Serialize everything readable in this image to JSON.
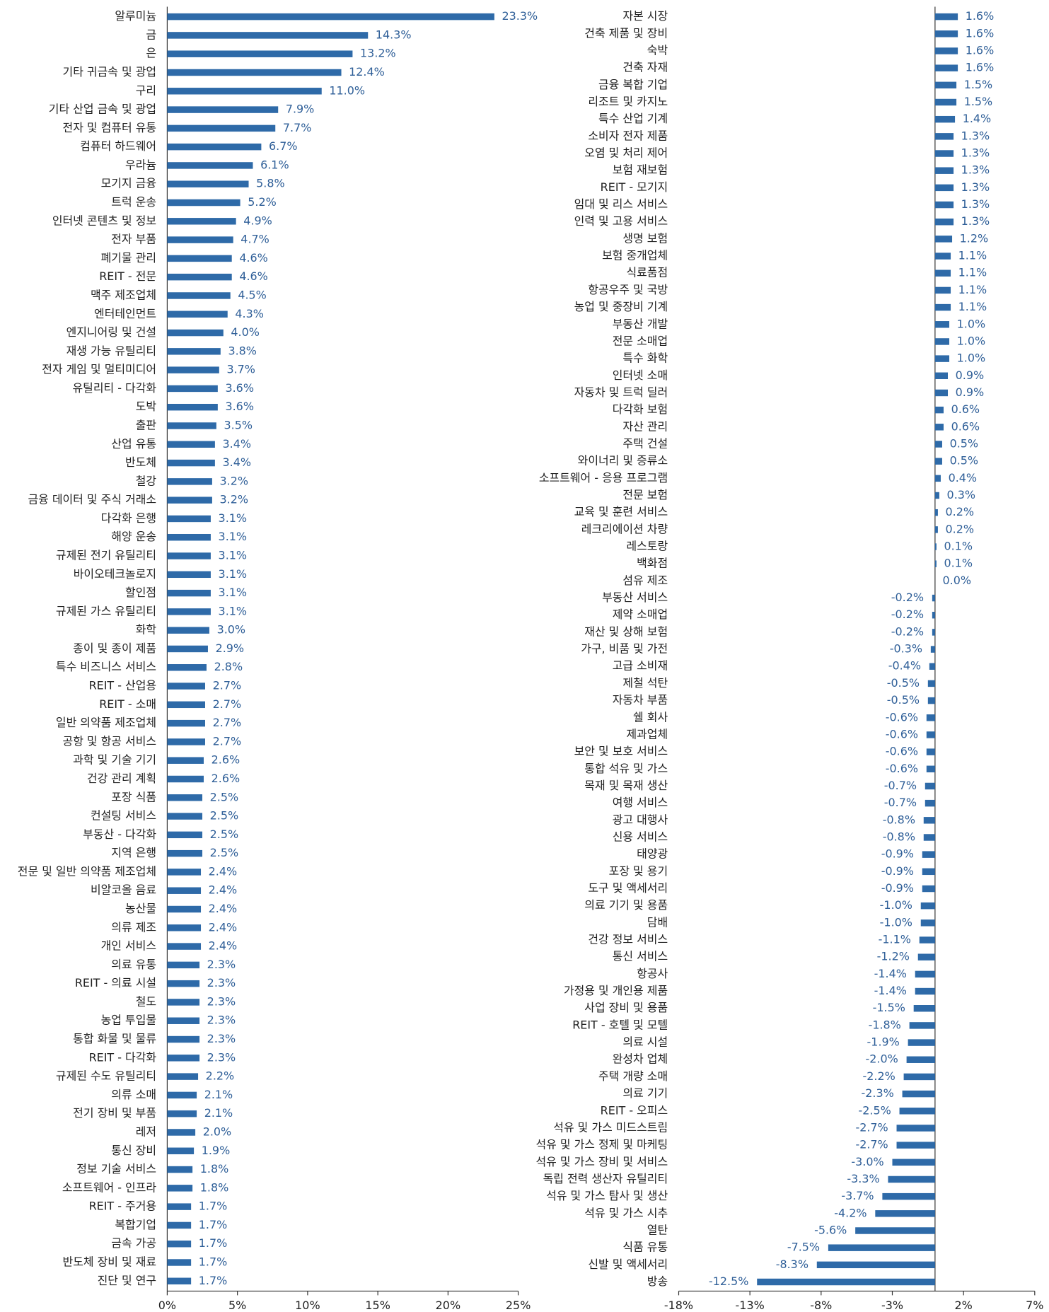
{
  "chart_data": [
    {
      "type": "bar",
      "orientation": "horizontal",
      "color": "#2e6aa8",
      "categories": [
        "알루미늄",
        "금",
        "은",
        "기타 귀금속 및 광업",
        "구리",
        "기타 산업 금속 및 광업",
        "전자 및 컴퓨터 유통",
        "컴퓨터 하드웨어",
        "우라늄",
        "모기지 금융",
        "트럭 운송",
        "인터넷 콘텐츠 및 정보",
        "전자 부품",
        "폐기물 관리",
        "REIT - 전문",
        "맥주 제조업체",
        "엔터테인먼트",
        "엔지니어링 및 건설",
        "재생 가능 유틸리티",
        "전자 게임 및 멀티미디어",
        "유틸리티 - 다각화",
        "도박",
        "출판",
        "산업 유통",
        "반도체",
        "철강",
        "금융 데이터 및 주식 거래소",
        "다각화 은행",
        "해양 운송",
        "규제된 전기 유틸리티",
        "바이오테크놀로지",
        "할인점",
        "규제된 가스 유틸리티",
        "화학",
        "종이 및 종이 제품",
        "특수 비즈니스 서비스",
        "REIT - 산업용",
        "REIT - 소매",
        "일반 의약품 제조업체",
        "공항 및 항공 서비스",
        "과학 및 기술 기기",
        "건강 관리 계획",
        "포장 식품",
        "컨설팅 서비스",
        "부동산 - 다각화",
        "지역 은행",
        "전문 및 일반 의약품 제조업체",
        "비알코올 음료",
        "농산물",
        "의류 제조",
        "개인 서비스",
        "의료 유통",
        "REIT - 의료 시설",
        "철도",
        "농업 투입물",
        "통합 화물 및 물류",
        "REIT - 다각화",
        "규제된 수도 유틸리티",
        "의류 소매",
        "전기 장비 및 부품",
        "레저",
        "통신 장비",
        "정보 기술 서비스",
        "소프트웨어 - 인프라",
        "REIT - 주거용",
        "복합기업",
        "금속 가공",
        "반도체 장비 및 재료",
        "진단 및 연구"
      ],
      "values": [
        23.3,
        14.3,
        13.2,
        12.4,
        11.0,
        7.9,
        7.7,
        6.7,
        6.1,
        5.8,
        5.2,
        4.9,
        4.7,
        4.6,
        4.6,
        4.5,
        4.3,
        4.0,
        3.8,
        3.7,
        3.6,
        3.6,
        3.5,
        3.4,
        3.4,
        3.2,
        3.2,
        3.1,
        3.1,
        3.1,
        3.1,
        3.1,
        3.1,
        3.0,
        2.9,
        2.8,
        2.7,
        2.7,
        2.7,
        2.7,
        2.6,
        2.6,
        2.5,
        2.5,
        2.5,
        2.5,
        2.4,
        2.4,
        2.4,
        2.4,
        2.4,
        2.3,
        2.3,
        2.3,
        2.3,
        2.3,
        2.3,
        2.2,
        2.1,
        2.1,
        2.0,
        1.9,
        1.8,
        1.8,
        1.7,
        1.7,
        1.7,
        1.7,
        1.7
      ],
      "value_labels": [
        "23.3%",
        "14.3%",
        "13.2%",
        "12.4%",
        "11.0%",
        "7.9%",
        "7.7%",
        "6.7%",
        "6.1%",
        "5.8%",
        "5.2%",
        "4.9%",
        "4.7%",
        "4.6%",
        "4.6%",
        "4.5%",
        "4.3%",
        "4.0%",
        "3.8%",
        "3.7%",
        "3.6%",
        "3.6%",
        "3.5%",
        "3.4%",
        "3.4%",
        "3.2%",
        "3.2%",
        "3.1%",
        "3.1%",
        "3.1%",
        "3.1%",
        "3.1%",
        "3.1%",
        "3.0%",
        "2.9%",
        "2.8%",
        "2.7%",
        "2.7%",
        "2.7%",
        "2.7%",
        "2.6%",
        "2.6%",
        "2.5%",
        "2.5%",
        "2.5%",
        "2.5%",
        "2.4%",
        "2.4%",
        "2.4%",
        "2.4%",
        "2.4%",
        "2.3%",
        "2.3%",
        "2.3%",
        "2.3%",
        "2.3%",
        "2.3%",
        "2.2%",
        "2.1%",
        "2.1%",
        "2.0%",
        "1.9%",
        "1.8%",
        "1.8%",
        "1.7%",
        "1.7%",
        "1.7%",
        "1.7%",
        "1.7%"
      ],
      "xlim": [
        0,
        25
      ],
      "xticks": [
        {
          "value": 0,
          "label": "0%"
        },
        {
          "value": 5,
          "label": "5%"
        },
        {
          "value": 10,
          "label": "10%"
        },
        {
          "value": 15,
          "label": "15%"
        },
        {
          "value": 20,
          "label": "20%"
        },
        {
          "value": 25,
          "label": "25%"
        }
      ]
    },
    {
      "type": "bar",
      "orientation": "horizontal",
      "color": "#2e6aa8",
      "categories": [
        "자본 시장",
        "건축 제품 및 장비",
        "숙박",
        "건축 자재",
        "금융 복합 기업",
        "리조트 및 카지노",
        "특수 산업 기계",
        "소비자 전자 제품",
        "오염 및 처리 제어",
        "보험 재보험",
        "REIT - 모기지",
        "임대 및 리스 서비스",
        "인력 및 고용 서비스",
        "생명 보험",
        "보험 중개업체",
        "식료품점",
        "항공우주 및 국방",
        "농업 및 중장비 기계",
        "부동산 개발",
        "전문 소매업",
        "특수 화학",
        "인터넷 소매",
        "자동차 및 트럭 딜러",
        "다각화 보험",
        "자산 관리",
        "주택 건설",
        "와이너리 및 증류소",
        "소프트웨어 - 응용 프로그램",
        "전문 보험",
        "교육 및 훈련 서비스",
        "레크리에이션 차량",
        "레스토랑",
        "백화점",
        "섬유 제조",
        "부동산 서비스",
        "제약 소매업",
        "재산 및 상해 보험",
        "가구, 비품 및 가전",
        "고급 소비재",
        "제철 석탄",
        "자동차 부품",
        "쉘 회사",
        "제과업체",
        "보안 및 보호 서비스",
        "통합 석유 및 가스",
        "목재 및 목재 생산",
        "여행 서비스",
        "광고 대행사",
        "신용 서비스",
        "태양광",
        "포장 및 용기",
        "도구 및 액세서리",
        "의료 기기 및 용품",
        "담배",
        "건강 정보 서비스",
        "통신 서비스",
        "항공사",
        "가정용 및 개인용 제품",
        "사업 장비 및 용품",
        "REIT - 호텔 및 모텔",
        "의료 시설",
        "완성차 업체",
        "주택 개량 소매",
        "의료 기기",
        "REIT - 오피스",
        "석유 및 가스 미드스트림",
        "석유 및 가스 정제 및 마케팅",
        "석유 및 가스 장비 및 서비스",
        "독립 전력 생산자 유틸리티",
        "석유 및 가스 탐사 및 생산",
        "석유 및 가스 시추",
        "열탄",
        "식품 유통",
        "신발 및 액세서리",
        "방송"
      ],
      "values": [
        1.6,
        1.6,
        1.6,
        1.6,
        1.5,
        1.5,
        1.4,
        1.3,
        1.3,
        1.3,
        1.3,
        1.3,
        1.3,
        1.2,
        1.1,
        1.1,
        1.1,
        1.1,
        1.0,
        1.0,
        1.0,
        0.9,
        0.9,
        0.6,
        0.6,
        0.5,
        0.5,
        0.4,
        0.3,
        0.2,
        0.2,
        0.1,
        0.1,
        0.0,
        -0.2,
        -0.2,
        -0.2,
        -0.3,
        -0.4,
        -0.5,
        -0.5,
        -0.6,
        -0.6,
        -0.6,
        -0.6,
        -0.7,
        -0.7,
        -0.8,
        -0.8,
        -0.9,
        -0.9,
        -0.9,
        -1.0,
        -1.0,
        -1.1,
        -1.2,
        -1.4,
        -1.4,
        -1.5,
        -1.8,
        -1.9,
        -2.0,
        -2.2,
        -2.3,
        -2.5,
        -2.7,
        -2.7,
        -3.0,
        -3.3,
        -3.7,
        -4.2,
        -5.6,
        -7.5,
        -8.3,
        -12.5
      ],
      "value_labels": [
        "1.6%",
        "1.6%",
        "1.6%",
        "1.6%",
        "1.5%",
        "1.5%",
        "1.4%",
        "1.3%",
        "1.3%",
        "1.3%",
        "1.3%",
        "1.3%",
        "1.3%",
        "1.2%",
        "1.1%",
        "1.1%",
        "1.1%",
        "1.1%",
        "1.0%",
        "1.0%",
        "1.0%",
        "0.9%",
        "0.9%",
        "0.6%",
        "0.6%",
        "0.5%",
        "0.5%",
        "0.4%",
        "0.3%",
        "0.2%",
        "0.2%",
        "0.1%",
        "0.1%",
        "0.0%",
        "-0.2%",
        "-0.2%",
        "-0.2%",
        "-0.3%",
        "-0.4%",
        "-0.5%",
        "-0.5%",
        "-0.6%",
        "-0.6%",
        "-0.6%",
        "-0.6%",
        "-0.7%",
        "-0.7%",
        "-0.8%",
        "-0.8%",
        "-0.9%",
        "-0.9%",
        "-0.9%",
        "-1.0%",
        "-1.0%",
        "-1.1%",
        "-1.2%",
        "-1.4%",
        "-1.4%",
        "-1.5%",
        "-1.8%",
        "-1.9%",
        "-2.0%",
        "-2.2%",
        "-2.3%",
        "-2.5%",
        "-2.7%",
        "-2.7%",
        "-3.0%",
        "-3.3%",
        "-3.7%",
        "-4.2%",
        "-5.6%",
        "-7.5%",
        "-8.3%",
        "-12.5%"
      ],
      "xlim": [
        -18,
        7
      ],
      "xticks": [
        {
          "value": -18,
          "label": "-18%"
        },
        {
          "value": -13,
          "label": "-13%"
        },
        {
          "value": -8,
          "label": "-8%"
        },
        {
          "value": -3,
          "label": "-3%"
        },
        {
          "value": 2,
          "label": "2%"
        },
        {
          "value": 7,
          "label": "7%"
        }
      ]
    }
  ]
}
